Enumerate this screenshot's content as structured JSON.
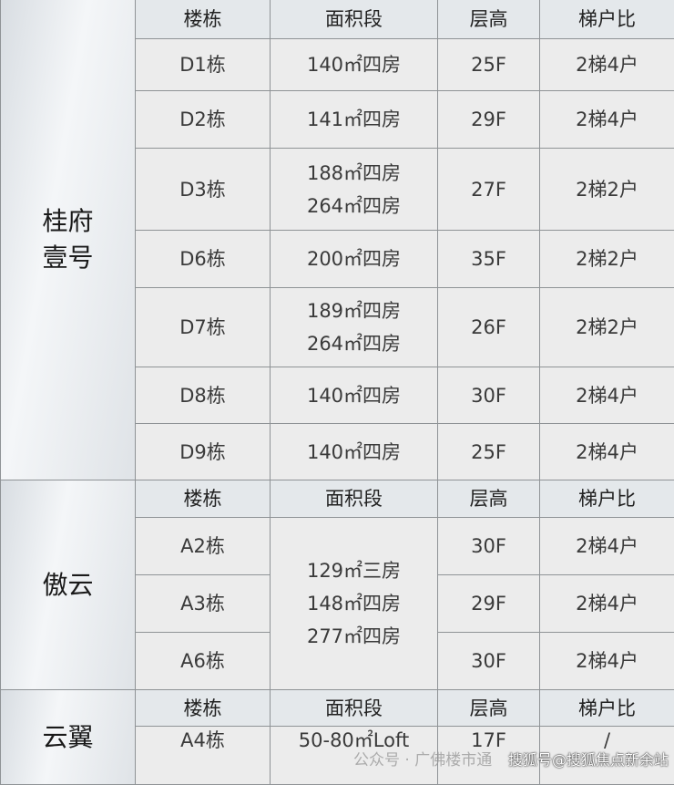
{
  "headers": [
    "楼栋",
    "面积段",
    "层高",
    "梯户比"
  ],
  "area_unit": "㎡",
  "sections": [
    {
      "name": "桂府\n壹号",
      "rows": [
        {
          "building": "D1栋",
          "areas": [
            "140㎡四房"
          ],
          "floors": "25F",
          "ratio": "2梯4户"
        },
        {
          "building": "D2栋",
          "areas": [
            "141㎡四房"
          ],
          "floors": "29F",
          "ratio": "2梯4户"
        },
        {
          "building": "D3栋",
          "areas": [
            "188㎡四房",
            "264㎡四房"
          ],
          "floors": "27F",
          "ratio": "2梯2户"
        },
        {
          "building": "D6栋",
          "areas": [
            "200㎡四房"
          ],
          "floors": "35F",
          "ratio": "2梯2户"
        },
        {
          "building": "D7栋",
          "areas": [
            "189㎡四房",
            "264㎡四房"
          ],
          "floors": "26F",
          "ratio": "2梯2户"
        },
        {
          "building": "D8栋",
          "areas": [
            "140㎡四房"
          ],
          "floors": "30F",
          "ratio": "2梯4户"
        },
        {
          "building": "D9栋",
          "areas": [
            "140㎡四房"
          ],
          "floors": "25F",
          "ratio": "2梯4户"
        }
      ]
    },
    {
      "name": "傲云",
      "shared_areas": [
        "129㎡三房",
        "148㎡四房",
        "277㎡四房"
      ],
      "rows": [
        {
          "building": "A2栋",
          "floors": "30F",
          "ratio": "2梯4户"
        },
        {
          "building": "A3栋",
          "floors": "29F",
          "ratio": "2梯4户"
        },
        {
          "building": "A6栋",
          "floors": "30F",
          "ratio": "2梯4户"
        }
      ]
    },
    {
      "name": "云翼",
      "rows": [
        {
          "building": "A4栋",
          "areas": [
            "50-80㎡Loft"
          ],
          "floors": "17F",
          "ratio": "/"
        }
      ]
    }
  ],
  "watermarks": [
    "公众号 · 广佛楼市通",
    "搜狐号@搜狐焦点新余站"
  ]
}
